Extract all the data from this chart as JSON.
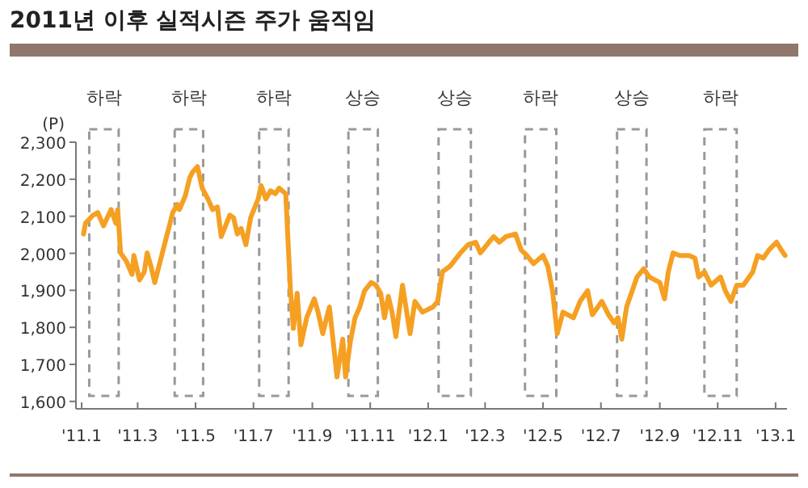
{
  "chart_data": {
    "type": "line",
    "title": "2011년 이후 실적시즌 주가 움직임",
    "ylabel": "(P)",
    "xlim": [
      "2010-12-26",
      "2013-01-13"
    ],
    "ylim": [
      1580,
      2300
    ],
    "xticks": [
      {
        "value": "2011-01",
        "label": "'11.1"
      },
      {
        "value": "2011-03",
        "label": "'11.3"
      },
      {
        "value": "2011-05",
        "label": "'11.5"
      },
      {
        "value": "2011-07",
        "label": "'11.7"
      },
      {
        "value": "2011-09",
        "label": "'11.9"
      },
      {
        "value": "2011-11",
        "label": "'11.11"
      },
      {
        "value": "2012-01",
        "label": "'12.1"
      },
      {
        "value": "2012-03",
        "label": "'12.3"
      },
      {
        "value": "2012-05",
        "label": "'12.5"
      },
      {
        "value": "2012-07",
        "label": "'12.7"
      },
      {
        "value": "2012-09",
        "label": "'12.9"
      },
      {
        "value": "2012-11",
        "label": "'12.11"
      },
      {
        "value": "2013-01",
        "label": "'13.1"
      }
    ],
    "yticks": [
      {
        "value": 1600,
        "label": "1,600"
      },
      {
        "value": 1700,
        "label": "1,700"
      },
      {
        "value": 1800,
        "label": "1,800"
      },
      {
        "value": 1900,
        "label": "1,900"
      },
      {
        "value": 2000,
        "label": "2,000"
      },
      {
        "value": 2100,
        "label": "2,100"
      },
      {
        "value": 2200,
        "label": "2,200"
      },
      {
        "value": 2300,
        "label": "2,300"
      }
    ],
    "bands": [
      {
        "axis": "x",
        "from": "2011-01-09",
        "to": "2011-02-09",
        "label": "하락",
        "color": "#999999"
      },
      {
        "axis": "x",
        "from": "2011-04-09",
        "to": "2011-05-09",
        "label": "하락",
        "color": "#999999"
      },
      {
        "axis": "x",
        "from": "2011-07-07",
        "to": "2011-08-07",
        "label": "하락",
        "color": "#999999"
      },
      {
        "axis": "x",
        "from": "2011-10-09",
        "to": "2011-11-09",
        "label": "상승",
        "color": "#999999"
      },
      {
        "axis": "x",
        "from": "2012-01-12",
        "to": "2012-02-15",
        "label": "상승",
        "color": "#999999"
      },
      {
        "axis": "x",
        "from": "2012-04-12",
        "to": "2012-05-15",
        "label": "하락",
        "color": "#999999"
      },
      {
        "axis": "x",
        "from": "2012-07-18",
        "to": "2012-08-18",
        "label": "상승",
        "color": "#999999"
      },
      {
        "axis": "x",
        "from": "2012-10-18",
        "to": "2012-11-21",
        "label": "하락",
        "color": "#999999"
      }
    ],
    "series": [
      {
        "color": "#f5a023",
        "x": [
          "2011-01-03",
          "2011-01-05",
          "2011-01-13",
          "2011-01-18",
          "2011-01-24",
          "2011-02-01",
          "2011-02-06",
          "2011-02-08",
          "2011-02-11",
          "2011-02-17",
          "2011-02-23",
          "2011-02-25",
          "2011-03-03",
          "2011-03-08",
          "2011-03-11",
          "2011-03-15",
          "2011-03-19",
          "2011-03-27",
          "2011-04-07",
          "2011-04-12",
          "2011-04-14",
          "2011-04-20",
          "2011-04-25",
          "2011-04-28",
          "2011-05-03",
          "2011-05-08",
          "2011-05-14",
          "2011-05-19",
          "2011-05-24",
          "2011-05-28",
          "2011-06-06",
          "2011-06-10",
          "2011-06-14",
          "2011-06-18",
          "2011-06-23",
          "2011-06-28",
          "2011-07-06",
          "2011-07-09",
          "2011-07-14",
          "2011-07-19",
          "2011-07-24",
          "2011-07-28",
          "2011-08-04",
          "2011-08-07",
          "2011-08-09",
          "2011-08-12",
          "2011-08-16",
          "2011-08-20",
          "2011-08-26",
          "2011-09-03",
          "2011-09-07",
          "2011-09-12",
          "2011-09-16",
          "2011-09-19",
          "2011-09-23",
          "2011-09-27",
          "2011-10-03",
          "2011-10-06",
          "2011-10-11",
          "2011-10-16",
          "2011-10-21",
          "2011-10-26",
          "2011-11-02",
          "2011-11-07",
          "2011-11-12",
          "2011-11-16",
          "2011-11-20",
          "2011-11-24",
          "2011-11-28",
          "2011-12-05",
          "2011-12-13",
          "2011-12-18",
          "2011-12-26",
          "2012-01-06",
          "2012-01-11",
          "2012-01-16",
          "2012-01-24",
          "2012-02-04",
          "2012-02-12",
          "2012-02-20",
          "2012-02-25",
          "2012-03-05",
          "2012-03-10",
          "2012-03-16",
          "2012-03-23",
          "2012-04-02",
          "2012-04-08",
          "2012-04-14",
          "2012-04-21",
          "2012-05-01",
          "2012-05-06",
          "2012-05-11",
          "2012-05-16",
          "2012-05-22",
          "2012-06-02",
          "2012-06-09",
          "2012-06-17",
          "2012-06-22",
          "2012-07-02",
          "2012-07-09",
          "2012-07-15",
          "2012-07-19",
          "2012-07-23",
          "2012-07-28",
          "2012-08-08",
          "2012-08-15",
          "2012-08-21",
          "2012-09-01",
          "2012-09-06",
          "2012-09-10",
          "2012-09-15",
          "2012-09-22",
          "2012-10-02",
          "2012-10-08",
          "2012-10-12",
          "2012-10-18",
          "2012-10-25",
          "2012-11-04",
          "2012-11-09",
          "2012-11-15",
          "2012-11-21",
          "2012-11-28",
          "2012-12-08",
          "2012-12-13",
          "2012-12-19",
          "2012-12-25",
          "2013-01-02",
          "2013-01-07",
          "2013-01-11"
        ],
        "values": [
          2052,
          2081,
          2103,
          2110,
          2074,
          2118,
          2081,
          2118,
          2001,
          1979,
          1943,
          1994,
          1928,
          1950,
          2001,
          1965,
          1921,
          2001,
          2110,
          2132,
          2118,
          2154,
          2205,
          2220,
          2234,
          2176,
          2147,
          2118,
          2125,
          2045,
          2103,
          2096,
          2052,
          2067,
          2023,
          2096,
          2147,
          2183,
          2147,
          2169,
          2161,
          2176,
          2161,
          2001,
          1899,
          1797,
          1892,
          1753,
          1826,
          1877,
          1841,
          1783,
          1826,
          1855,
          1761,
          1666,
          1768,
          1666,
          1761,
          1826,
          1855,
          1899,
          1921,
          1914,
          1892,
          1826,
          1884,
          1841,
          1775,
          1914,
          1783,
          1870,
          1841,
          1855,
          1870,
          1950,
          1965,
          2001,
          2023,
          2030,
          2001,
          2030,
          2045,
          2030,
          2045,
          2052,
          2009,
          1994,
          1972,
          1994,
          1965,
          1899,
          1783,
          1841,
          1826,
          1870,
          1899,
          1834,
          1870,
          1834,
          1812,
          1826,
          1768,
          1855,
          1936,
          1958,
          1936,
          1921,
          1877,
          1950,
          2001,
          1994,
          1994,
          1987,
          1936,
          1950,
          1914,
          1936,
          1899,
          1870,
          1914,
          1914,
          1950,
          1994,
          1987,
          2009,
          2030,
          2009,
          1994
        ]
      }
    ]
  }
}
